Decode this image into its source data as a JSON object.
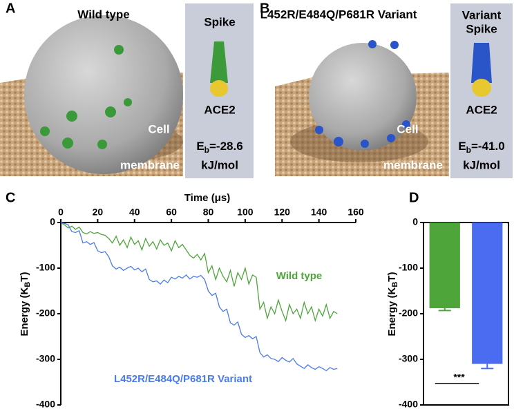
{
  "panels": {
    "A": {
      "label": "A",
      "title": "Wild type",
      "side_title": [
        "Spike"
      ],
      "receptor": "ACE2",
      "energy": {
        "symbol": "E",
        "sub": "b",
        "value": "=-28.6",
        "unit": "kJ/mol"
      },
      "membrane": [
        "Cell",
        "membrane"
      ]
    },
    "B": {
      "label": "B",
      "title": "L452R/E484Q/P681R Variant",
      "side_title": [
        "Variant",
        "Spike"
      ],
      "receptor": "ACE2",
      "energy": {
        "symbol": "E",
        "sub": "b",
        "value": "=-41.0",
        "unit": "kJ/mol"
      },
      "membrane": [
        "Cell",
        "membrane"
      ]
    }
  },
  "chart_data": [
    {
      "panel": "C",
      "type": "line",
      "x_label": "Time (μs)",
      "y_label": [
        "Energy (K",
        "B",
        "T)"
      ],
      "x": [
        0,
        2,
        4,
        6,
        8,
        10,
        12,
        14,
        16,
        18,
        20,
        22,
        24,
        26,
        28,
        30,
        32,
        34,
        36,
        38,
        40,
        42,
        44,
        46,
        48,
        50,
        52,
        54,
        56,
        58,
        60,
        62,
        64,
        66,
        68,
        70,
        72,
        74,
        76,
        78,
        80,
        82,
        84,
        86,
        88,
        90,
        92,
        94,
        96,
        98,
        100,
        102,
        104,
        106,
        108,
        110,
        112,
        114,
        116,
        118,
        120,
        122,
        124,
        126,
        128,
        130,
        132,
        134,
        136,
        138,
        140,
        142,
        144,
        146,
        148,
        150
      ],
      "series": [
        {
          "name": "Wild type",
          "color": "#4ea53a",
          "values": [
            0,
            -5,
            -12,
            -8,
            -15,
            -10,
            -22,
            -25,
            -20,
            -24,
            -22,
            -26,
            -28,
            -35,
            -45,
            -30,
            -50,
            -38,
            -55,
            -32,
            -48,
            -40,
            -60,
            -35,
            -52,
            -42,
            -58,
            -38,
            -50,
            -45,
            -62,
            -40,
            -55,
            -48,
            -60,
            -72,
            -78,
            -70,
            -82,
            -68,
            -110,
            -95,
            -125,
            -100,
            -118,
            -130,
            -105,
            -140,
            -110,
            -125,
            -100,
            -135,
            -115,
            -120,
            -190,
            -175,
            -210,
            -185,
            -200,
            -170,
            -195,
            -215,
            -180,
            -200,
            -190,
            -210,
            -175,
            -200,
            -185,
            -215,
            -190,
            -205,
            -180,
            -210,
            -195,
            -200
          ]
        },
        {
          "name": "L452R/E484Q/P681R Variant",
          "color": "#4b7be8",
          "values": [
            0,
            -2,
            -5,
            -20,
            -22,
            -18,
            -45,
            -42,
            -48,
            -44,
            -62,
            -66,
            -64,
            -75,
            -95,
            -102,
            -98,
            -105,
            -100,
            -96,
            -104,
            -100,
            -108,
            -102,
            -125,
            -130,
            -128,
            -135,
            -126,
            -132,
            -120,
            -124,
            -118,
            -122,
            -115,
            -124,
            -118,
            -120,
            -116,
            -125,
            -150,
            -160,
            -155,
            -185,
            -195,
            -190,
            -220,
            -225,
            -218,
            -245,
            -252,
            -248,
            -255,
            -250,
            -285,
            -295,
            -290,
            -298,
            -300,
            -305,
            -296,
            -302,
            -306,
            -298,
            -310,
            -315,
            -320,
            -312,
            -318,
            -322,
            -316,
            -320,
            -325,
            -318,
            -322,
            -320
          ]
        }
      ],
      "xlim": [
        0,
        160
      ],
      "xticks": [
        0,
        20,
        40,
        60,
        80,
        100,
        120,
        140,
        160
      ],
      "ylim": [
        -400,
        0
      ],
      "yticks": [
        0,
        -100,
        -200,
        -300,
        -400
      ]
    },
    {
      "panel": "D",
      "type": "bar",
      "y_label": [
        "Energy (K",
        "B",
        "T)"
      ],
      "categories": [
        null,
        null
      ],
      "values": [
        -188,
        -310
      ],
      "errors": [
        5,
        10
      ],
      "colors": [
        "#4ea53a",
        "#4b6cf0"
      ],
      "annotation": "***",
      "ylim": [
        -400,
        0
      ],
      "yticks": [
        0,
        -100,
        -200,
        -300,
        -400
      ]
    }
  ]
}
